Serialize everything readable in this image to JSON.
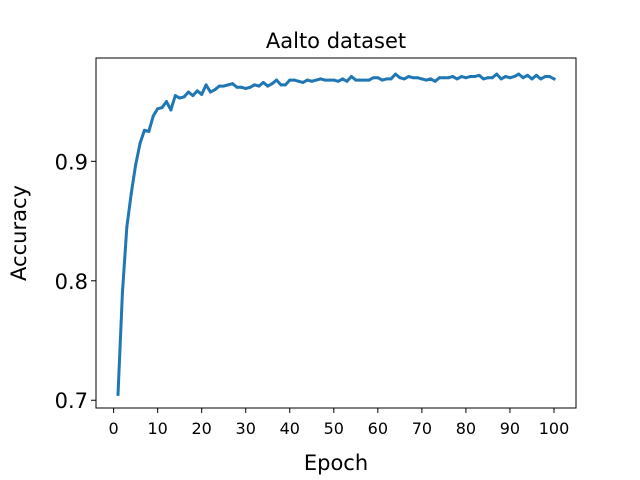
{
  "chart_data": {
    "type": "line",
    "title": "Aalto dataset",
    "xlabel": "Epoch",
    "ylabel": "Accuracy",
    "xlim": [
      -4,
      105
    ],
    "ylim": [
      0.6935,
      0.9865
    ],
    "xticks": [
      0,
      10,
      20,
      30,
      40,
      50,
      60,
      70,
      80,
      90,
      100
    ],
    "yticks": [
      0.7,
      0.8,
      0.9
    ],
    "ytick_labels": [
      "0.7",
      "0.8",
      "0.9"
    ],
    "grid": false,
    "color": "#1f77b4",
    "series": [
      {
        "x": [
          1,
          2,
          3,
          4,
          5,
          6,
          7,
          8,
          9,
          10,
          11,
          12,
          13,
          14,
          15,
          16,
          17,
          18,
          19,
          20,
          21,
          22,
          23,
          24,
          25,
          26,
          27,
          28,
          29,
          30,
          31,
          32,
          33,
          34,
          35,
          36,
          37,
          38,
          39,
          40,
          41,
          42,
          43,
          44,
          45,
          46,
          47,
          48,
          49,
          50,
          51,
          52,
          53,
          54,
          55,
          56,
          57,
          58,
          59,
          60,
          61,
          62,
          63,
          64,
          65,
          66,
          67,
          68,
          69,
          70,
          71,
          72,
          73,
          74,
          75,
          76,
          77,
          78,
          79,
          80,
          81,
          82,
          83,
          84,
          85,
          86,
          87,
          88,
          89,
          90,
          91,
          92,
          93,
          94,
          95,
          96,
          97,
          98,
          99,
          100
        ],
        "values": [
          0.705,
          0.79,
          0.845,
          0.873,
          0.897,
          0.915,
          0.926,
          0.925,
          0.938,
          0.944,
          0.945,
          0.95,
          0.943,
          0.955,
          0.953,
          0.954,
          0.958,
          0.955,
          0.959,
          0.956,
          0.964,
          0.958,
          0.96,
          0.963,
          0.963,
          0.964,
          0.965,
          0.962,
          0.962,
          0.961,
          0.962,
          0.964,
          0.963,
          0.966,
          0.963,
          0.965,
          0.968,
          0.964,
          0.964,
          0.968,
          0.968,
          0.967,
          0.966,
          0.968,
          0.967,
          0.968,
          0.969,
          0.968,
          0.968,
          0.968,
          0.967,
          0.969,
          0.967,
          0.971,
          0.968,
          0.968,
          0.968,
          0.968,
          0.97,
          0.97,
          0.968,
          0.969,
          0.969,
          0.973,
          0.97,
          0.969,
          0.971,
          0.97,
          0.97,
          0.969,
          0.968,
          0.969,
          0.967,
          0.97,
          0.97,
          0.97,
          0.971,
          0.969,
          0.971,
          0.97,
          0.971,
          0.971,
          0.972,
          0.969,
          0.97,
          0.97,
          0.973,
          0.969,
          0.971,
          0.97,
          0.971,
          0.973,
          0.97,
          0.972,
          0.969,
          0.972,
          0.969,
          0.971,
          0.971,
          0.969
        ]
      }
    ]
  }
}
